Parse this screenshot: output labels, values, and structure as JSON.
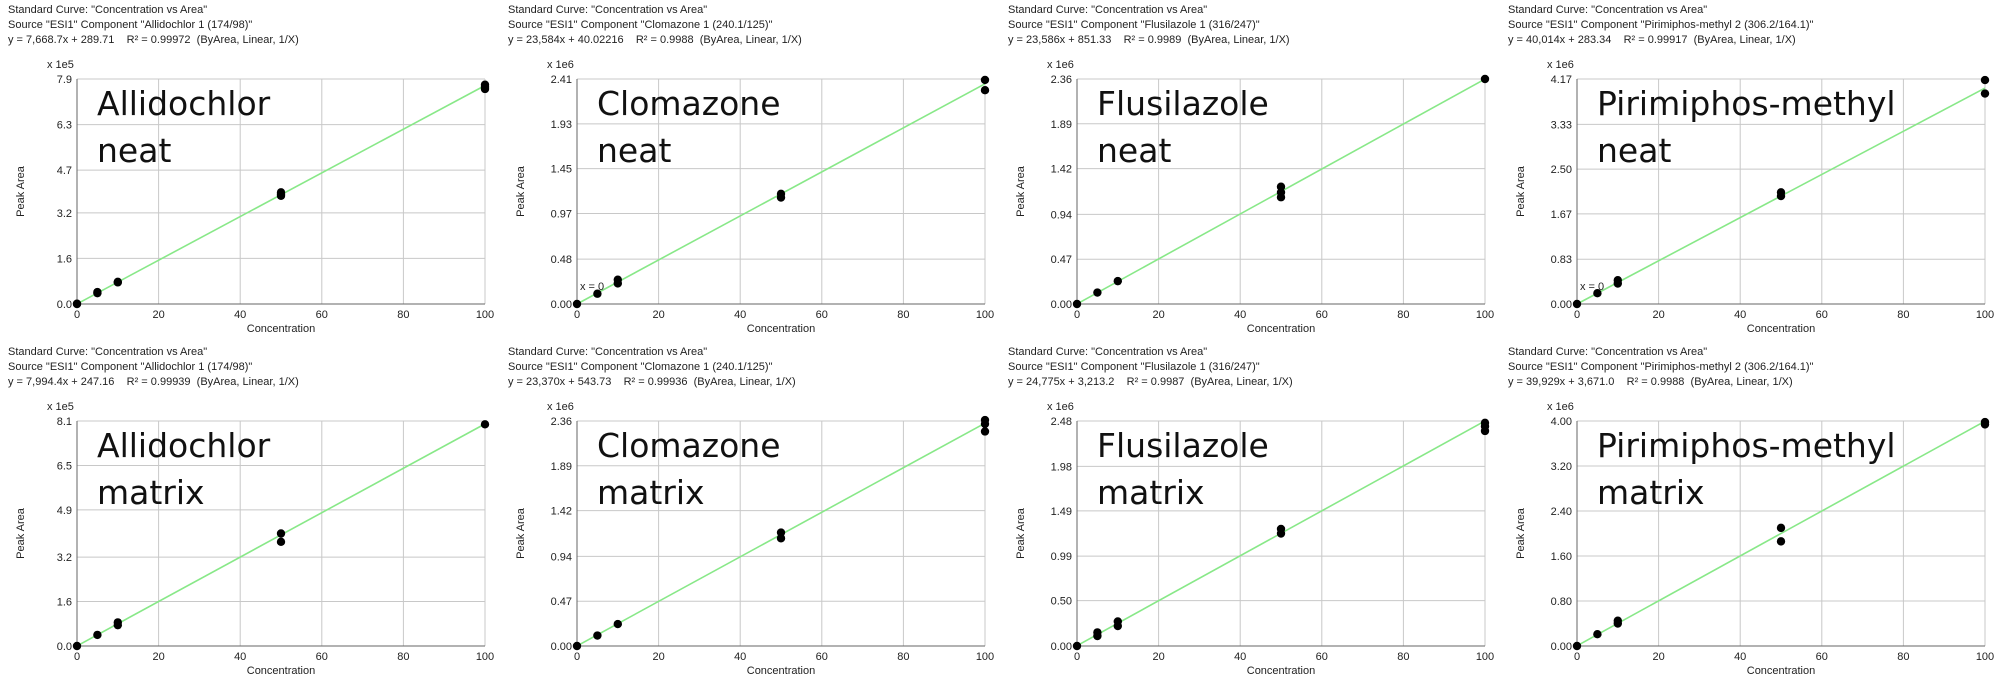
{
  "chart_data": [
    {
      "type": "scatter",
      "header": [
        "Standard Curve: \"Concentration vs Area\"",
        "Source \"ESI1\" Component \"Allidochlor 1 (174/98)\"",
        "y = 7,668.7x + 289.71    R² = 0.99972  (ByArea, Linear, 1/X)"
      ],
      "annotation": "Allidochlor\nneat",
      "scale_label": "x 1e5",
      "xlabel": "Concentration",
      "ylabel": "Peak Area",
      "xlim": [
        0,
        100
      ],
      "ylim": [
        0,
        7.9
      ],
      "xticks": [
        0,
        20,
        40,
        60,
        80,
        100
      ],
      "yticks": [
        0.0,
        1.6,
        3.2,
        4.7,
        6.3,
        7.9
      ],
      "ytick_labels": [
        "0.0",
        "1.6",
        "3.2",
        "4.7",
        "6.3",
        "7.9"
      ],
      "fit": {
        "slope": 0.076687,
        "intercept": 0.0029
      },
      "x": [
        0,
        0,
        5,
        5,
        10,
        10,
        50,
        50,
        50,
        100,
        100,
        100
      ],
      "y": [
        0.0,
        0.01,
        0.38,
        0.42,
        0.76,
        0.78,
        3.8,
        3.86,
        3.92,
        7.55,
        7.62,
        7.7
      ]
    },
    {
      "type": "scatter",
      "header": [
        "Standard Curve: \"Concentration vs Area\"",
        "Source \"ESI1\" Component \"Clomazone 1 (240.1/125)\"",
        "y = 23,584x + 40.02216    R² = 0.9988  (ByArea, Linear, 1/X)"
      ],
      "annotation": "Clomazone\nneat",
      "scale_label": "x 1e6",
      "xlabel": "Concentration",
      "ylabel": "Peak Area",
      "xlim": [
        0,
        100
      ],
      "ylim": [
        0,
        2.41
      ],
      "xticks": [
        0,
        20,
        40,
        60,
        80,
        100
      ],
      "yticks": [
        0.0,
        0.48,
        0.97,
        1.45,
        1.93,
        2.41
      ],
      "ytick_labels": [
        "0.00",
        "0.48",
        "0.97",
        "1.45",
        "1.93",
        "2.41"
      ],
      "fit": {
        "slope": 0.023584,
        "intercept": 4e-05
      },
      "zero_label": "x = 0",
      "x": [
        0,
        5,
        10,
        10,
        50,
        50,
        100,
        100
      ],
      "y": [
        0.0,
        0.11,
        0.22,
        0.26,
        1.14,
        1.18,
        2.29,
        2.4
      ]
    },
    {
      "type": "scatter",
      "header": [
        "Standard Curve: \"Concentration vs Area\"",
        "Source \"ESI1\" Component \"Flusilazole 1 (316/247)\"",
        "y = 23,586x + 851.33    R² = 0.9989  (ByArea, Linear, 1/X)"
      ],
      "annotation": "Flusilazole\nneat",
      "scale_label": "x 1e6",
      "xlabel": "Concentration",
      "ylabel": "Peak Area",
      "xlim": [
        0,
        100
      ],
      "ylim": [
        0,
        2.36
      ],
      "xticks": [
        0,
        20,
        40,
        60,
        80,
        100
      ],
      "yticks": [
        0.0,
        0.47,
        0.94,
        1.42,
        1.89,
        2.36
      ],
      "ytick_labels": [
        "0.00",
        "0.47",
        "0.94",
        "1.42",
        "1.89",
        "2.36"
      ],
      "fit": {
        "slope": 0.023586,
        "intercept": 0.00085
      },
      "x": [
        0,
        5,
        10,
        50,
        50,
        50,
        100
      ],
      "y": [
        0.0,
        0.12,
        0.24,
        1.12,
        1.17,
        1.23,
        2.36
      ]
    },
    {
      "type": "scatter",
      "header": [
        "Standard Curve: \"Concentration vs Area\"",
        "Source \"ESI1\" Component \"Pirimiphos-methyl 2 (306.2/164.1)\"",
        "y = 40,014x + 283.34    R² = 0.99917  (ByArea, Linear, 1/X)"
      ],
      "annotation": "Pirimiphos-methyl\nneat",
      "scale_label": "x 1e6",
      "xlabel": "Concentration",
      "ylabel": "Peak Area",
      "xlim": [
        0,
        100
      ],
      "ylim": [
        0,
        4.17
      ],
      "xticks": [
        0,
        20,
        40,
        60,
        80,
        100
      ],
      "yticks": [
        0.0,
        0.83,
        1.67,
        2.5,
        3.33,
        4.17
      ],
      "ytick_labels": [
        "0.00",
        "0.83",
        "1.67",
        "2.50",
        "3.33",
        "4.17"
      ],
      "fit": {
        "slope": 0.040014,
        "intercept": 0.00028
      },
      "zero_label": "x = 0",
      "x": [
        0,
        5,
        10,
        10,
        50,
        50,
        100,
        100
      ],
      "y": [
        0.0,
        0.2,
        0.38,
        0.44,
        2.0,
        2.07,
        3.9,
        4.15
      ]
    },
    {
      "type": "scatter",
      "header": [
        "Standard Curve: \"Concentration vs Area\"",
        "Source \"ESI1\" Component \"Allidochlor 1 (174/98)\"",
        "y = 7,994.4x + 247.16    R² = 0.99939  (ByArea, Linear, 1/X)"
      ],
      "annotation": "Allidochlor\nmatrix",
      "scale_label": "x 1e5",
      "xlabel": "Concentration",
      "ylabel": "Peak Area",
      "xlim": [
        0,
        100
      ],
      "ylim": [
        0,
        8.1
      ],
      "xticks": [
        0,
        20,
        40,
        60,
        80,
        100
      ],
      "yticks": [
        0.0,
        1.6,
        3.2,
        4.9,
        6.5,
        8.1
      ],
      "ytick_labels": [
        "0.0",
        "1.6",
        "3.2",
        "4.9",
        "6.5",
        "8.1"
      ],
      "fit": {
        "slope": 0.079944,
        "intercept": 0.0025
      },
      "x": [
        0,
        5,
        10,
        10,
        50,
        50,
        100
      ],
      "y": [
        0.0,
        0.4,
        0.75,
        0.85,
        3.75,
        4.05,
        7.98
      ]
    },
    {
      "type": "scatter",
      "header": [
        "Standard Curve: \"Concentration vs Area\"",
        "Source \"ESI1\" Component \"Clomazone 1 (240.1/125)\"",
        "y = 23,370x + 543.73    R² = 0.99936  (ByArea, Linear, 1/X)"
      ],
      "annotation": "Clomazone\nmatrix",
      "scale_label": "x 1e6",
      "xlabel": "Concentration",
      "ylabel": "Peak Area",
      "xlim": [
        0,
        100
      ],
      "ylim": [
        0,
        2.36
      ],
      "xticks": [
        0,
        20,
        40,
        60,
        80,
        100
      ],
      "yticks": [
        0.0,
        0.47,
        0.94,
        1.42,
        1.89,
        2.36
      ],
      "ytick_labels": [
        "0.00",
        "0.47",
        "0.94",
        "1.42",
        "1.89",
        "2.36"
      ],
      "fit": {
        "slope": 0.02337,
        "intercept": 0.00054
      },
      "x": [
        0,
        5,
        10,
        50,
        50,
        100,
        100,
        100
      ],
      "y": [
        0.0,
        0.11,
        0.23,
        1.13,
        1.19,
        2.25,
        2.33,
        2.37
      ]
    },
    {
      "type": "scatter",
      "header": [
        "Standard Curve: \"Concentration vs Area\"",
        "Source \"ESI1\" Component \"Flusilazole 1 (316/247)\"",
        "y = 24,775x + 3,213.2    R² = 0.9987  (ByArea, Linear, 1/X)"
      ],
      "annotation": "Flusilazole\nmatrix",
      "scale_label": "x 1e6",
      "xlabel": "Concentration",
      "ylabel": "Peak Area",
      "xlim": [
        0,
        100
      ],
      "ylim": [
        0,
        2.48
      ],
      "xticks": [
        0,
        20,
        40,
        60,
        80,
        100
      ],
      "yticks": [
        0.0,
        0.5,
        0.99,
        1.49,
        1.98,
        2.48
      ],
      "ytick_labels": [
        "0.00",
        "0.50",
        "0.99",
        "1.49",
        "1.98",
        "2.48"
      ],
      "fit": {
        "slope": 0.024775,
        "intercept": 0.0032
      },
      "x": [
        0,
        5,
        5,
        10,
        10,
        50,
        50,
        100,
        100,
        100
      ],
      "y": [
        0.0,
        0.11,
        0.15,
        0.22,
        0.27,
        1.24,
        1.29,
        2.37,
        2.42,
        2.46
      ]
    },
    {
      "type": "scatter",
      "header": [
        "Standard Curve: \"Concentration vs Area\"",
        "Source \"ESI1\" Component \"Pirimiphos-methyl 2 (306.2/164.1)\"",
        "y = 39,929x + 3,671.0    R² = 0.9988  (ByArea, Linear, 1/X)"
      ],
      "annotation": "Pirimiphos-methyl\nmatrix",
      "scale_label": "x 1e6",
      "xlabel": "Concentration",
      "ylabel": "Peak Area",
      "xlim": [
        0,
        100
      ],
      "ylim": [
        0,
        4.0
      ],
      "xticks": [
        0,
        20,
        40,
        60,
        80,
        100
      ],
      "yticks": [
        0.0,
        0.8,
        1.6,
        2.4,
        3.2,
        4.0
      ],
      "ytick_labels": [
        "0.00",
        "0.80",
        "1.60",
        "2.40",
        "3.20",
        "4.00"
      ],
      "fit": {
        "slope": 0.039929,
        "intercept": 0.0037
      },
      "x": [
        0,
        5,
        10,
        10,
        50,
        50,
        100,
        100
      ],
      "y": [
        0.0,
        0.21,
        0.4,
        0.45,
        1.86,
        2.1,
        3.94,
        3.98
      ]
    }
  ]
}
